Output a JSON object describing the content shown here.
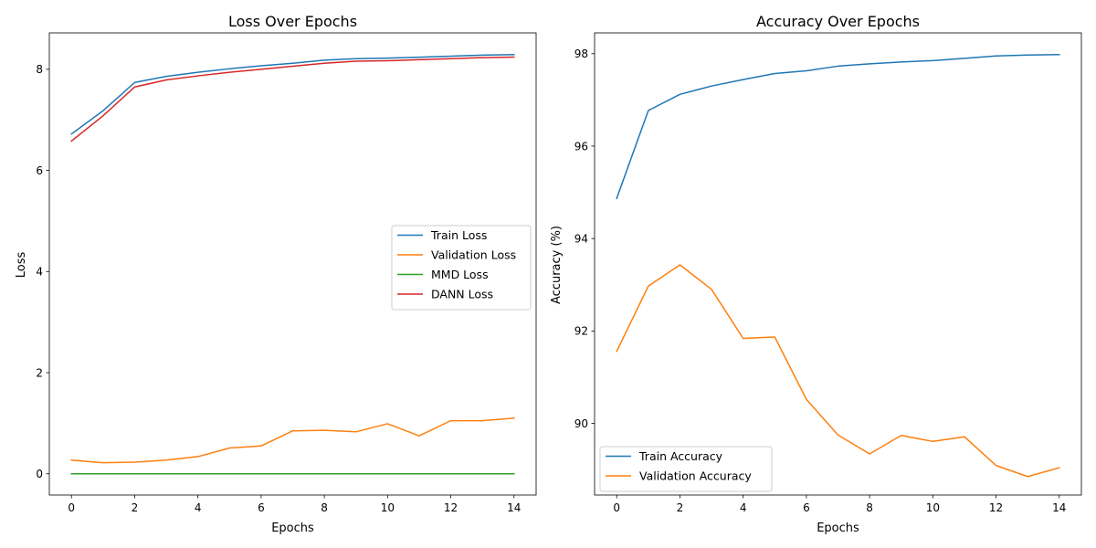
{
  "chart_data": [
    {
      "type": "line",
      "title": "Loss Over Epochs",
      "xlabel": "Epochs",
      "ylabel": "Loss",
      "xlim": [
        -0.7,
        14.7
      ],
      "ylim": [
        -0.42,
        8.72
      ],
      "xticks": [
        0,
        2,
        4,
        6,
        8,
        10,
        12,
        14
      ],
      "yticks": [
        0,
        2,
        4,
        6,
        8
      ],
      "legend_position": "center-right",
      "x": [
        0,
        1,
        2,
        3,
        4,
        5,
        6,
        7,
        8,
        9,
        10,
        11,
        12,
        13,
        14
      ],
      "series": [
        {
          "name": "Train Loss",
          "color": "#1f77b4",
          "values": [
            6.72,
            7.18,
            7.74,
            7.86,
            7.94,
            8.01,
            8.07,
            8.12,
            8.18,
            8.21,
            8.22,
            8.24,
            8.26,
            8.28,
            8.29
          ]
        },
        {
          "name": "Validation Loss",
          "color": "#ff7f0e",
          "values": [
            0.27,
            0.22,
            0.23,
            0.27,
            0.34,
            0.51,
            0.55,
            0.85,
            0.86,
            0.83,
            0.99,
            0.75,
            1.05,
            1.05,
            1.1
          ]
        },
        {
          "name": "MMD Loss",
          "color": "#2ca02c",
          "values": [
            0,
            0,
            0,
            0,
            0,
            0,
            0,
            0,
            0,
            0,
            0,
            0,
            0,
            0,
            0
          ]
        },
        {
          "name": "DANN Loss",
          "color": "#d62728",
          "values": [
            6.58,
            7.08,
            7.65,
            7.79,
            7.87,
            7.94,
            8.0,
            8.06,
            8.12,
            8.16,
            8.17,
            8.19,
            8.21,
            8.23,
            8.24
          ]
        }
      ]
    },
    {
      "type": "line",
      "title": "Accuracy Over Epochs",
      "xlabel": "Epochs",
      "ylabel": "Accuracy (%)",
      "xlim": [
        -0.7,
        14.7
      ],
      "ylim": [
        88.45,
        98.45
      ],
      "xticks": [
        0,
        2,
        4,
        6,
        8,
        10,
        12,
        14
      ],
      "yticks": [
        90,
        92,
        94,
        96,
        98
      ],
      "legend_position": "lower-left",
      "x": [
        0,
        1,
        2,
        3,
        4,
        5,
        6,
        7,
        8,
        9,
        10,
        11,
        12,
        13,
        14
      ],
      "series": [
        {
          "name": "Train Accuracy",
          "color": "#1f77b4",
          "values": [
            94.87,
            96.77,
            97.12,
            97.3,
            97.44,
            97.57,
            97.63,
            97.73,
            97.78,
            97.82,
            97.85,
            97.9,
            97.95,
            97.97,
            97.98
          ]
        },
        {
          "name": "Validation Accuracy",
          "color": "#ff7f0e",
          "values": [
            91.56,
            92.97,
            93.43,
            92.9,
            91.84,
            91.87,
            90.52,
            89.75,
            89.34,
            89.74,
            89.61,
            89.71,
            89.09,
            88.85,
            89.04
          ]
        }
      ]
    }
  ]
}
